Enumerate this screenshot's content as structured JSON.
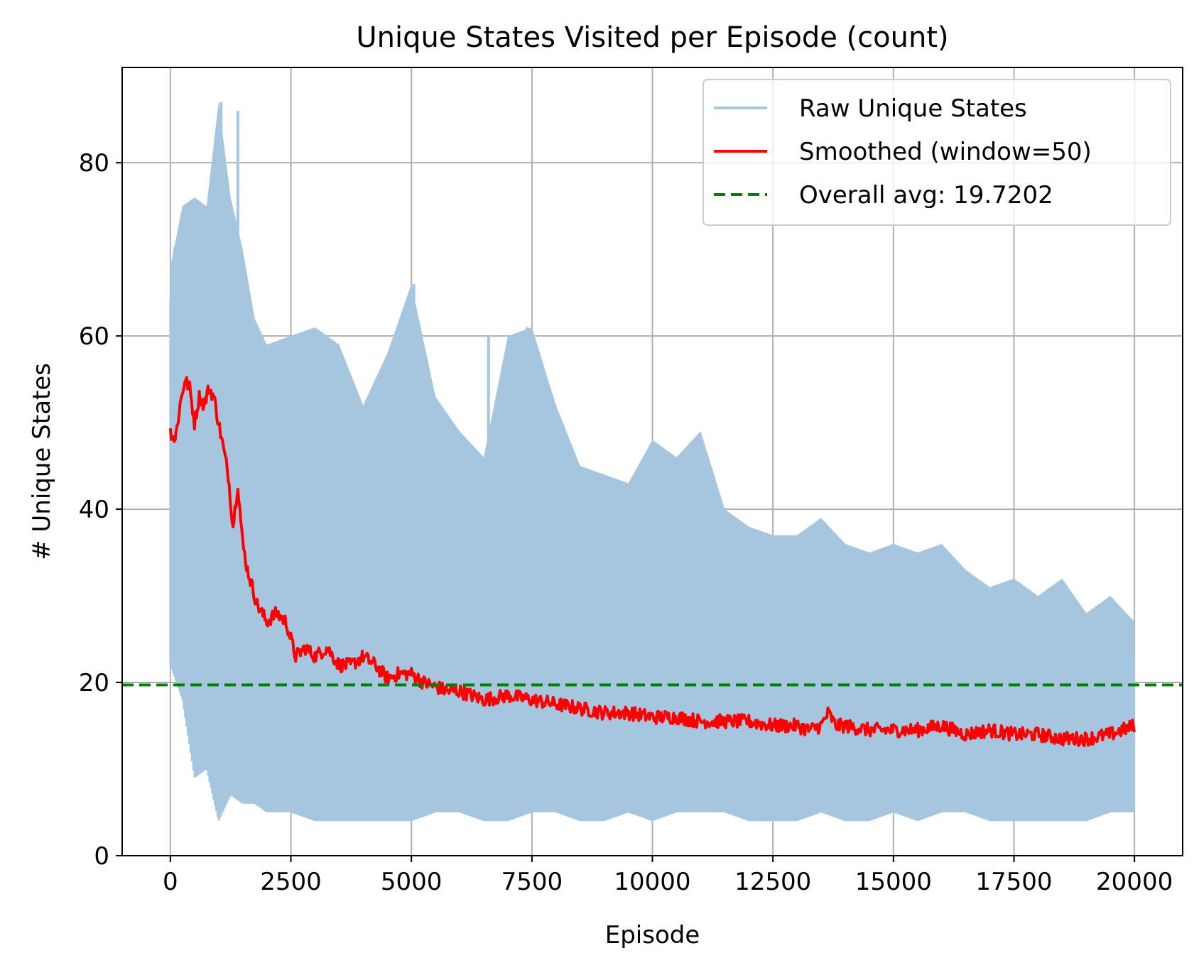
{
  "chart_data": {
    "type": "line",
    "title": "Unique States Visited per Episode (count)",
    "xlabel": "Episode",
    "ylabel": "# Unique States",
    "xlim": [
      -1000,
      21000
    ],
    "ylim": [
      0,
      91
    ],
    "x_ticks": [
      0,
      2500,
      5000,
      7500,
      10000,
      12500,
      15000,
      17500,
      20000
    ],
    "x_tick_labels": [
      "0",
      "2500",
      "5000",
      "7500",
      "10000",
      "12500",
      "15000",
      "17500",
      "20000"
    ],
    "y_ticks": [
      0,
      20,
      40,
      60,
      80
    ],
    "y_tick_labels": [
      "0",
      "20",
      "40",
      "60",
      "80"
    ],
    "grid": true,
    "legend_position": "top-right",
    "series": [
      {
        "name": "Raw Unique States",
        "style": "band",
        "color": "#a6c6df",
        "x": [
          0,
          250,
          500,
          750,
          1000,
          1250,
          1500,
          1750,
          2000,
          2500,
          3000,
          3500,
          4000,
          4500,
          5000,
          5500,
          6000,
          6500,
          7000,
          7500,
          8000,
          8500,
          9000,
          9500,
          10000,
          10500,
          11000,
          11500,
          12000,
          12500,
          13000,
          13500,
          14000,
          14500,
          15000,
          15500,
          16000,
          16500,
          17000,
          17500,
          18000,
          18500,
          19000,
          19500,
          20000
        ],
        "upper": [
          68,
          75,
          76,
          75,
          87,
          76,
          70,
          62,
          59,
          60,
          61,
          59,
          52,
          58,
          66,
          53,
          49,
          46,
          60,
          61,
          52,
          45,
          44,
          43,
          48,
          46,
          49,
          40,
          38,
          37,
          37,
          39,
          36,
          35,
          36,
          35,
          36,
          33,
          31,
          32,
          30,
          32,
          28,
          30,
          27
        ],
        "lower": [
          22,
          18,
          9,
          10,
          4,
          7,
          6,
          6,
          5,
          5,
          4,
          4,
          4,
          4,
          4,
          5,
          5,
          4,
          4,
          5,
          5,
          4,
          4,
          5,
          4,
          5,
          5,
          5,
          4,
          4,
          4,
          5,
          4,
          4,
          5,
          4,
          5,
          5,
          4,
          4,
          4,
          4,
          4,
          5,
          5
        ],
        "peaks": [
          [
            1050,
            87
          ],
          [
            1400,
            86
          ],
          [
            5050,
            66
          ],
          [
            7400,
            61
          ],
          [
            6600,
            60
          ]
        ]
      },
      {
        "name": "Smoothed (window=50)",
        "style": "line",
        "color": "#ff0000",
        "x": [
          0,
          100,
          200,
          300,
          400,
          500,
          600,
          700,
          800,
          900,
          1000,
          1100,
          1200,
          1300,
          1400,
          1500,
          1600,
          1700,
          1800,
          1900,
          2000,
          2200,
          2400,
          2600,
          2800,
          3000,
          3250,
          3500,
          3750,
          4000,
          4250,
          4500,
          4750,
          5000,
          5250,
          5500,
          5750,
          6000,
          6500,
          7000,
          7500,
          8000,
          8500,
          9000,
          9500,
          10000,
          10500,
          11000,
          11500,
          12000,
          12500,
          13000,
          13250,
          13500,
          13650,
          13800,
          14000,
          14500,
          15000,
          15500,
          16000,
          16500,
          17000,
          17500,
          18000,
          18500,
          19000,
          19500,
          20000
        ],
        "values": [
          49,
          48,
          52,
          55,
          54,
          50,
          53,
          52,
          54,
          53,
          50,
          47,
          44,
          38,
          43,
          36,
          33,
          31,
          29,
          28,
          27,
          28,
          27,
          23,
          24,
          23,
          24,
          22,
          22,
          23,
          22,
          20.5,
          21,
          21,
          20,
          19.5,
          19,
          19,
          18,
          18.5,
          18,
          17.5,
          17,
          16.5,
          16.5,
          16,
          16,
          15.5,
          15.5,
          15.5,
          15,
          15,
          14.5,
          15,
          16.5,
          15,
          15,
          14.5,
          14.5,
          14.5,
          15,
          14,
          14.5,
          14,
          14,
          13.5,
          13.5,
          14,
          15
        ]
      },
      {
        "name": "Overall avg: 19.7202",
        "style": "dashed-hline",
        "color": "#008000",
        "value": 19.7202
      }
    ]
  }
}
